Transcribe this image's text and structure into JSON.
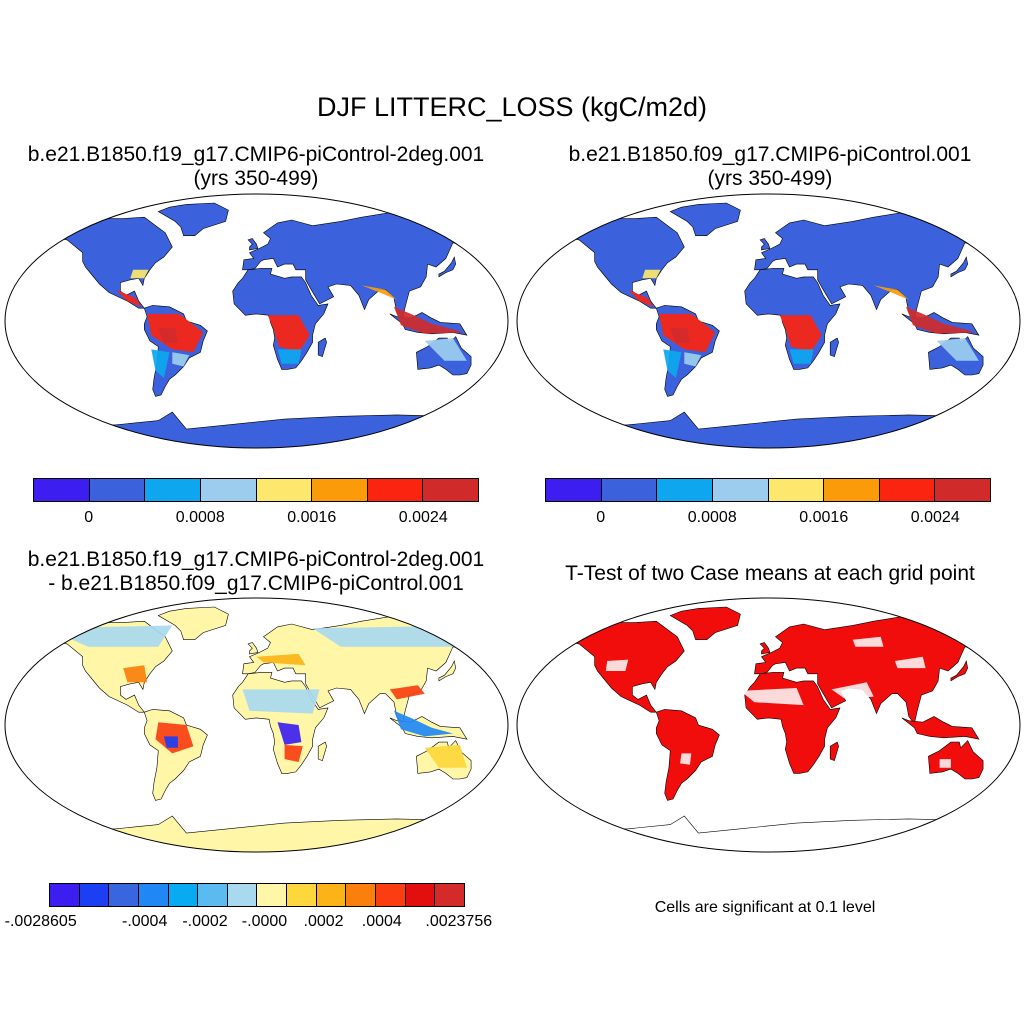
{
  "title": "DJF LITTERC_LOSS (kgC/m2d)",
  "panels": {
    "p1": {
      "line1": "b.e21.B1850.f19_g17.CMIP6-piControl-2deg.001",
      "line2": "(yrs 350-499)"
    },
    "p2": {
      "line1": "b.e21.B1850.f09_g17.CMIP6-piControl.001",
      "line2": "(yrs 350-499)"
    },
    "p3": {
      "line1": "b.e21.B1850.f19_g17.CMIP6-piControl-2deg.001",
      "line2": "- b.e21.B1850.f09_g17.CMIP6-piControl.001"
    },
    "p4": {
      "line1": "T-Test of two Case means at each grid point"
    }
  },
  "colorbar_top": {
    "colors": [
      "#3c1ff0",
      "#3b62dc",
      "#0ea7ef",
      "#9ccdee",
      "#fde76c",
      "#fb9b0a",
      "#fb2410",
      "#d02b2a"
    ],
    "tick_labels": [
      "0",
      "0.0008",
      "0.0016",
      "0.0024"
    ]
  },
  "colorbar_diff": {
    "colors": [
      "#3c1ff0",
      "#1c3ff4",
      "#3766de",
      "#2187f5",
      "#08aaf1",
      "#5bbbf0",
      "#a8d9ee",
      "#fff6a8",
      "#fdd73c",
      "#fbb317",
      "#fb7f0c",
      "#fa3e12",
      "#e30f0f",
      "#d52a2a"
    ],
    "tick_labels": [
      "-.0028605",
      "-.0004",
      "-.0002",
      "-.0000",
      ".0002",
      ".0004",
      ".0023756"
    ]
  },
  "note": "Cells are significant at 0.1 level",
  "map_colors": {
    "ocean": "#ffffff",
    "outline": "#000000",
    "land_top": "#3b62dc",
    "land_diff": "#fff6a8",
    "significant": "#f20d0d"
  }
}
